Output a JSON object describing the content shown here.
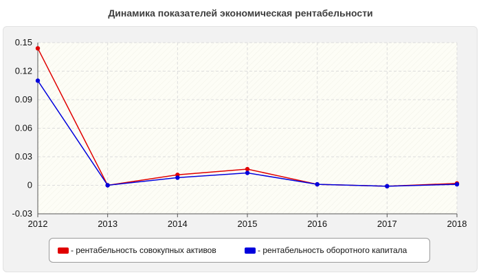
{
  "title": "Динамика показателей экономическая рентабельности",
  "colors": {
    "plot_bg": "#fdfdf6",
    "grid": "#dcdcdc",
    "axis": "#555555"
  },
  "chart_data": {
    "type": "line",
    "x": [
      "2012",
      "2013",
      "2014",
      "2015",
      "2016",
      "2017",
      "2018"
    ],
    "ylim": [
      -0.03,
      0.15
    ],
    "yticks": [
      "0.15",
      "0.12",
      "0.09",
      "0.06",
      "0.03",
      "0",
      "-0.03"
    ],
    "ytick_values": [
      0.15,
      0.12,
      0.09,
      0.06,
      0.03,
      0,
      -0.03
    ],
    "grid": true,
    "legend_position": "bottom",
    "series": [
      {
        "name": "- рентабельность совокупных активов",
        "color": "#e00000",
        "values": [
          0.144,
          0.0,
          0.011,
          0.017,
          0.001,
          -0.001,
          0.002
        ]
      },
      {
        "name": "- рентабельность оборотного капитала",
        "color": "#0000dd",
        "values": [
          0.11,
          0.0,
          0.008,
          0.013,
          0.001,
          -0.001,
          0.001
        ]
      }
    ]
  }
}
